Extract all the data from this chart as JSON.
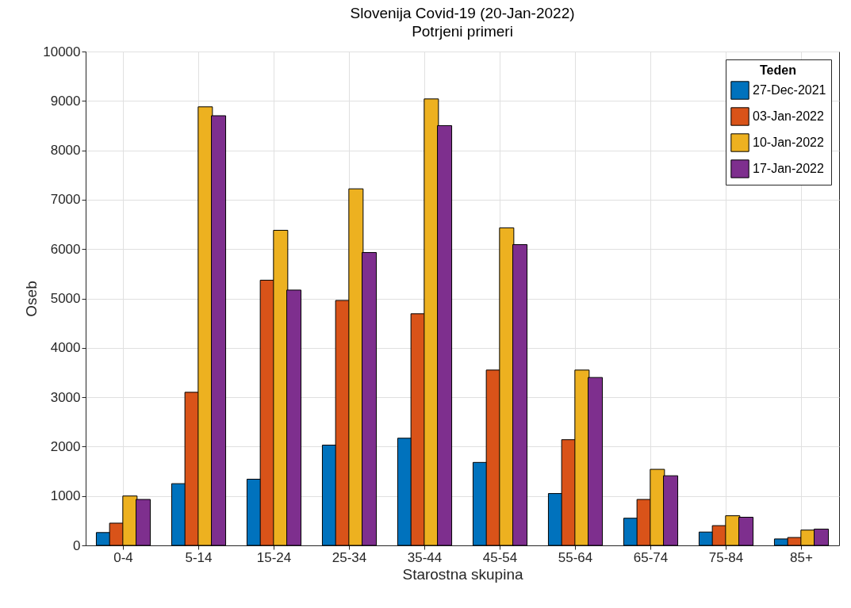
{
  "chart_data": {
    "type": "bar",
    "title": "Slovenija Covid-19 (20-Jan-2022)",
    "subtitle": "Potrjeni primeri",
    "xlabel": "Starostna skupina",
    "ylabel": "Oseb",
    "legend_title": "Teden",
    "categories": [
      "0-4",
      "5-14",
      "15-24",
      "25-34",
      "35-44",
      "45-54",
      "55-64",
      "65-74",
      "75-84",
      "85+"
    ],
    "series": [
      {
        "name": "27-Dec-2021",
        "color": "#0072bd",
        "values": [
          260,
          1250,
          1340,
          2030,
          2170,
          1680,
          1050,
          550,
          270,
          130
        ]
      },
      {
        "name": "03-Jan-2022",
        "color": "#d95319",
        "values": [
          450,
          3100,
          5370,
          4960,
          4690,
          3550,
          2140,
          930,
          400,
          160
        ]
      },
      {
        "name": "10-Jan-2022",
        "color": "#edb120",
        "values": [
          1000,
          8880,
          6380,
          7220,
          9040,
          6430,
          3550,
          1540,
          600,
          310
        ]
      },
      {
        "name": "17-Jan-2022",
        "color": "#7e2f8e",
        "values": [
          930,
          8700,
          5170,
          5930,
          8500,
          6090,
          3400,
          1410,
          570,
          330
        ]
      }
    ],
    "ylim": [
      0,
      10000
    ],
    "yticks": [
      0,
      1000,
      2000,
      3000,
      4000,
      5000,
      6000,
      7000,
      8000,
      9000,
      10000
    ],
    "grid": true,
    "legend": "top right"
  }
}
